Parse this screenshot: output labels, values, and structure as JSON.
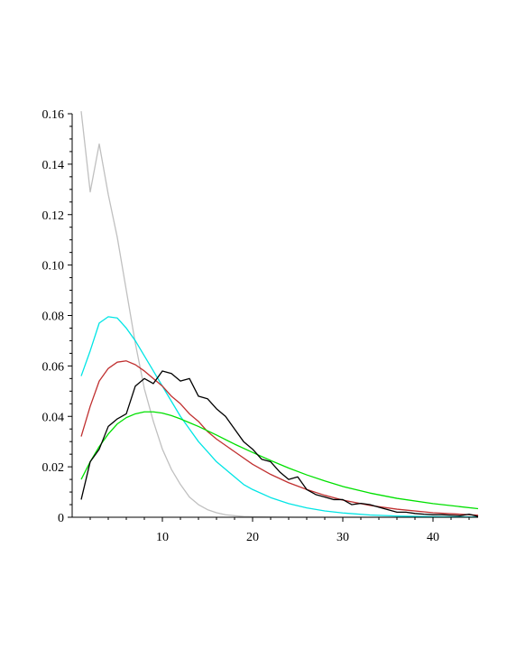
{
  "chart_data": {
    "type": "line",
    "title": "",
    "xlabel": "",
    "ylabel": "",
    "xlim": [
      0,
      45
    ],
    "ylim": [
      0,
      0.16
    ],
    "x_ticks": [
      10,
      20,
      30,
      40
    ],
    "x_tick_labels": [
      "10",
      "20",
      "30",
      "40"
    ],
    "y_ticks": [
      0,
      0.02,
      0.04,
      0.06,
      0.08,
      0.1,
      0.12,
      0.14,
      0.16
    ],
    "y_tick_labels": [
      "0",
      "0.02",
      "0.04",
      "0.06",
      "0.08",
      "0.10",
      "0.12",
      "0.14",
      "0.16"
    ],
    "grid": false,
    "legend": "none",
    "series": [
      {
        "color": "#c0c0c0",
        "x": [
          1,
          2,
          3,
          4,
          5,
          6,
          7,
          8,
          9,
          10,
          11,
          12,
          13,
          14,
          15,
          16,
          17,
          18,
          19,
          20,
          22,
          25,
          30,
          35,
          40,
          45
        ],
        "y": [
          0.161,
          0.129,
          0.148,
          0.128,
          0.111,
          0.09,
          0.069,
          0.051,
          0.038,
          0.027,
          0.019,
          0.013,
          0.008,
          0.005,
          0.003,
          0.0018,
          0.001,
          0.0006,
          0.0003,
          0.0002,
          0.0001,
          0.0,
          0.0,
          0.0,
          0.0,
          0.0
        ]
      },
      {
        "color": "#00e5e5",
        "x": [
          1,
          2,
          3,
          4,
          5,
          6,
          7,
          8,
          9,
          10,
          11,
          12,
          13,
          14,
          15,
          16,
          17,
          18,
          19,
          20,
          22,
          24,
          26,
          28,
          30,
          33,
          36,
          40,
          45
        ],
        "y": [
          0.056,
          0.066,
          0.077,
          0.0795,
          0.079,
          0.075,
          0.07,
          0.064,
          0.058,
          0.052,
          0.046,
          0.04,
          0.035,
          0.03,
          0.026,
          0.022,
          0.019,
          0.016,
          0.013,
          0.011,
          0.0078,
          0.0054,
          0.0037,
          0.0025,
          0.0017,
          0.0009,
          0.0005,
          0.0002,
          0.0001
        ]
      },
      {
        "color": "#c03030",
        "x": [
          1,
          2,
          3,
          4,
          5,
          6,
          7,
          8,
          9,
          10,
          11,
          12,
          13,
          14,
          15,
          16,
          18,
          20,
          22,
          24,
          26,
          28,
          30,
          33,
          36,
          40,
          45
        ],
        "y": [
          0.032,
          0.044,
          0.054,
          0.059,
          0.0615,
          0.062,
          0.0605,
          0.058,
          0.055,
          0.052,
          0.048,
          0.045,
          0.041,
          0.038,
          0.034,
          0.031,
          0.026,
          0.021,
          0.017,
          0.0137,
          0.011,
          0.0087,
          0.0068,
          0.0047,
          0.0032,
          0.0018,
          0.0008
        ]
      },
      {
        "color": "#00e000",
        "x": [
          1,
          2,
          3,
          4,
          5,
          6,
          7,
          8,
          9,
          10,
          11,
          12,
          13,
          14,
          15,
          16,
          18,
          20,
          22,
          24,
          26,
          28,
          30,
          33,
          36,
          40,
          45
        ],
        "y": [
          0.015,
          0.022,
          0.028,
          0.033,
          0.037,
          0.0395,
          0.041,
          0.0418,
          0.0418,
          0.0413,
          0.0403,
          0.039,
          0.0375,
          0.036,
          0.0343,
          0.0326,
          0.029,
          0.0257,
          0.0225,
          0.0195,
          0.0168,
          0.0144,
          0.0122,
          0.0096,
          0.0075,
          0.0054,
          0.0034
        ]
      },
      {
        "color": "#000000",
        "x": [
          1,
          2,
          3,
          4,
          5,
          6,
          7,
          8,
          9,
          10,
          11,
          12,
          13,
          14,
          15,
          16,
          17,
          18,
          19,
          20,
          21,
          22,
          23,
          24,
          25,
          26,
          27,
          28,
          29,
          30,
          31,
          32,
          33,
          34,
          35,
          36,
          37,
          38,
          39,
          40,
          41,
          42,
          43,
          44,
          45
        ],
        "y": [
          0.007,
          0.022,
          0.027,
          0.036,
          0.039,
          0.041,
          0.052,
          0.055,
          0.053,
          0.058,
          0.057,
          0.054,
          0.055,
          0.048,
          0.047,
          0.043,
          0.04,
          0.035,
          0.03,
          0.027,
          0.023,
          0.022,
          0.018,
          0.015,
          0.016,
          0.011,
          0.009,
          0.008,
          0.007,
          0.007,
          0.005,
          0.0055,
          0.005,
          0.004,
          0.003,
          0.002,
          0.002,
          0.0015,
          0.0012,
          0.001,
          0.001,
          0.0008,
          0.0006,
          0.0012,
          0.0003
        ]
      }
    ]
  }
}
